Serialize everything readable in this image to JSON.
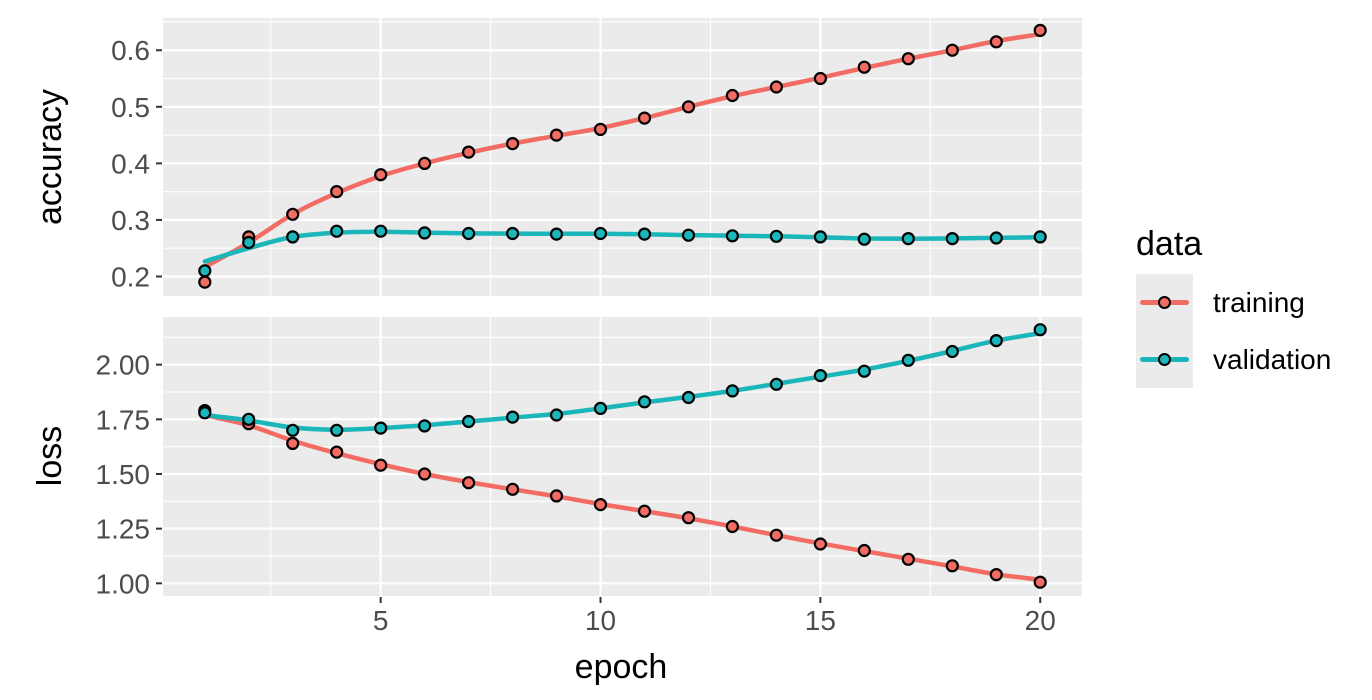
{
  "figure": {
    "background": "#FFFFFF",
    "panel_background": "#EBEBEB",
    "grid_color": "#FFFFFF",
    "axis_tick_color": "#333333",
    "tick_label_color": "#4D4D4D",
    "axis_title_color": "#000000",
    "point_outline_color": "#000000"
  },
  "legend": {
    "title": "data",
    "entries": [
      {
        "label": "training",
        "color": "#F26C64"
      },
      {
        "label": "validation",
        "color": "#1AB6B9"
      }
    ]
  },
  "x_axis": {
    "label": "epoch",
    "xlim": [
      0.05,
      20.95
    ],
    "ticks": [
      {
        "value": 5,
        "label": "5"
      },
      {
        "value": 10,
        "label": "10"
      },
      {
        "value": 15,
        "label": "15"
      },
      {
        "value": 20,
        "label": "20"
      }
    ]
  },
  "chart_data": [
    {
      "type": "line",
      "panel": "accuracy",
      "title": "",
      "xlabel": "epoch",
      "ylabel": "accuracy",
      "grid": true,
      "legend_position": "right",
      "x": [
        1,
        2,
        3,
        4,
        5,
        6,
        7,
        8,
        9,
        10,
        11,
        12,
        13,
        14,
        15,
        16,
        17,
        18,
        19,
        20
      ],
      "ylim": [
        0.1655,
        0.657
      ],
      "y_ticks": [
        {
          "value": 0.6,
          "label": "0.6"
        },
        {
          "value": 0.5,
          "label": "0.5"
        },
        {
          "value": 0.4,
          "label": "0.4"
        },
        {
          "value": 0.3,
          "label": "0.3"
        },
        {
          "value": 0.2,
          "label": "0.2"
        }
      ],
      "series": [
        {
          "name": "training",
          "color": "#F26C64",
          "values": [
            0.19,
            0.27,
            0.31,
            0.35,
            0.38,
            0.4,
            0.42,
            0.435,
            0.45,
            0.46,
            0.48,
            0.5,
            0.52,
            0.535,
            0.55,
            0.57,
            0.585,
            0.6,
            0.615,
            0.635
          ]
        },
        {
          "name": "validation",
          "color": "#1AB6B9",
          "values": [
            0.21,
            0.26,
            0.27,
            0.28,
            0.28,
            0.277,
            0.276,
            0.276,
            0.275,
            0.276,
            0.275,
            0.273,
            0.272,
            0.271,
            0.27,
            0.266,
            0.267,
            0.267,
            0.268,
            0.27
          ]
        }
      ]
    },
    {
      "type": "line",
      "panel": "loss",
      "title": "",
      "xlabel": "epoch",
      "ylabel": "loss",
      "grid": true,
      "legend_position": "right",
      "x": [
        1,
        2,
        3,
        4,
        5,
        6,
        7,
        8,
        9,
        10,
        11,
        12,
        13,
        14,
        15,
        16,
        17,
        18,
        19,
        20
      ],
      "ylim": [
        0.942,
        2.218
      ],
      "y_ticks": [
        {
          "value": 2.0,
          "label": "2.00"
        },
        {
          "value": 1.75,
          "label": "1.75"
        },
        {
          "value": 1.5,
          "label": "1.50"
        },
        {
          "value": 1.25,
          "label": "1.25"
        },
        {
          "value": 1.0,
          "label": "1.00"
        }
      ],
      "series": [
        {
          "name": "training",
          "color": "#F26C64",
          "values": [
            1.79,
            1.73,
            1.64,
            1.6,
            1.54,
            1.5,
            1.46,
            1.43,
            1.4,
            1.36,
            1.33,
            1.3,
            1.26,
            1.22,
            1.18,
            1.15,
            1.11,
            1.08,
            1.04,
            1.005
          ]
        },
        {
          "name": "validation",
          "color": "#1AB6B9",
          "values": [
            1.78,
            1.75,
            1.7,
            1.7,
            1.71,
            1.72,
            1.74,
            1.76,
            1.77,
            1.8,
            1.83,
            1.85,
            1.88,
            1.91,
            1.95,
            1.97,
            2.02,
            2.06,
            2.11,
            2.16
          ]
        }
      ]
    }
  ]
}
